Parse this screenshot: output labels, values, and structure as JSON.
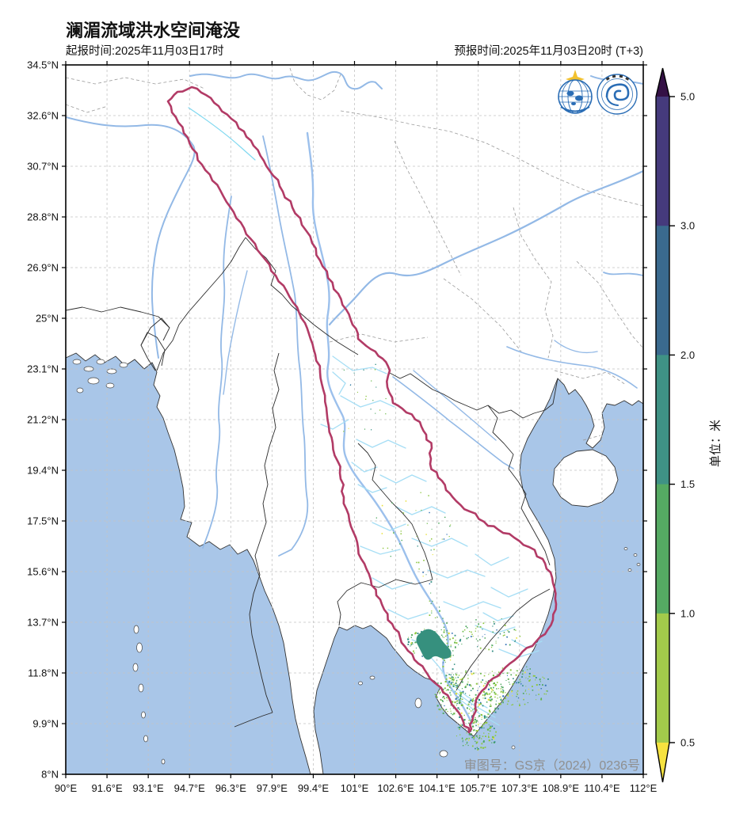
{
  "title": "澜湄流域洪水空间淹没",
  "issue_time_label": "起报时间:2025年11月03日17时",
  "forecast_time_label": "预报时间:2025年11月03日20时 (T+3)",
  "watermark": "审图号：GS京（2024）0236号",
  "colorbar": {
    "unit_label": "单位：米",
    "tick_labels": [
      "5.0",
      "3.0",
      "2.0",
      "1.5",
      "1.0",
      "0.5"
    ],
    "segment_colors_top_to_bottom": [
      "#453a7c",
      "#3a6a8e",
      "#3f9285",
      "#55aa63",
      "#a3cb4b"
    ],
    "arrow_top_color": "#341145",
    "arrow_bottom_color": "#f6e23f"
  },
  "axes": {
    "x_tick_labels": [
      "90°E",
      "91.6°E",
      "93.1°E",
      "94.7°E",
      "96.3°E",
      "97.9°E",
      "99.4°E",
      "101°E",
      "102.6°E",
      "104.1°E",
      "105.7°E",
      "107.3°E",
      "108.9°E",
      "110.4°E",
      "112°E"
    ],
    "y_tick_labels": [
      "34.5°N",
      "32.6°N",
      "30.7°N",
      "28.8°N",
      "26.9°N",
      "25°N",
      "23.1°N",
      "21.2°N",
      "19.4°N",
      "17.5°N",
      "15.6°N",
      "13.7°N",
      "11.8°N",
      "9.9°N",
      "8°N"
    ]
  },
  "map": {
    "sea_color": "#a9c6e8",
    "land_color": "#ffffff",
    "grid_color": "#c4c4c4",
    "country_border_color": "#2b2b2b",
    "province_border_color": "#9a9a9a",
    "basin_outline_color": "#b23b66",
    "main_river_color": "#93b9e6",
    "stream_color": "#a6def5",
    "lake_color": "#36907e",
    "flood_dot_colors": [
      "#8cc63f",
      "#4fa85f",
      "#2e8b80",
      "#66b944",
      "#2f6fb5",
      "#e8e036"
    ]
  },
  "logos": {
    "left": "wmo-logo",
    "right": "cma-logo"
  }
}
